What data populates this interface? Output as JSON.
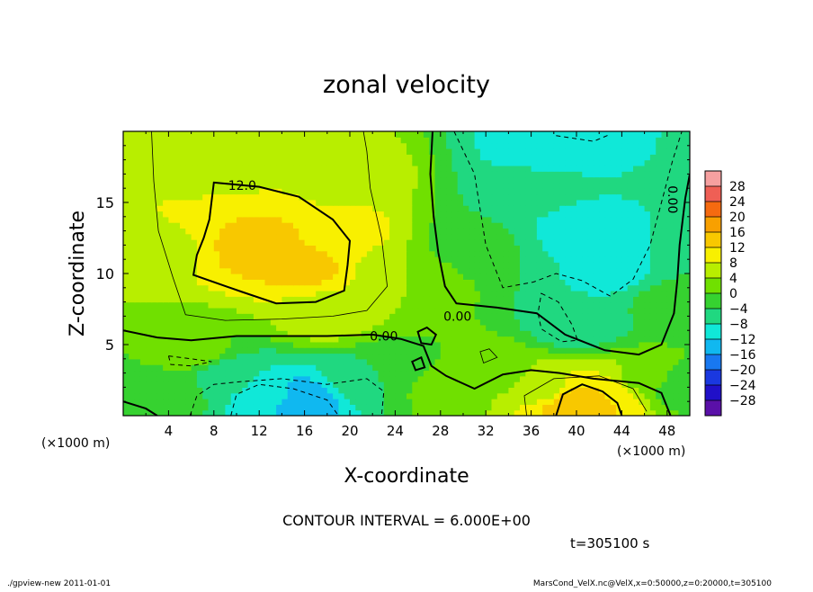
{
  "chart_data": {
    "type": "heatmap",
    "title": "zonal velocity",
    "xlabel": "X-coordinate",
    "ylabel": "Z-coordinate",
    "x_unit": "(×1000 m)",
    "y_unit": "(×1000 m)",
    "xlim": [
      0,
      50
    ],
    "ylim": [
      0,
      20
    ],
    "x_ticks": [
      4,
      8,
      12,
      16,
      20,
      24,
      28,
      32,
      36,
      40,
      44,
      48
    ],
    "y_ticks": [
      5,
      10,
      15
    ],
    "colorbar_labels": [
      28,
      24,
      20,
      16,
      12,
      8,
      4,
      0,
      -4,
      -8,
      -12,
      -16,
      -20,
      -24,
      -28
    ],
    "colorbar_colors": [
      "#f6a0a0",
      "#ef5f55",
      "#f56a10",
      "#f8a000",
      "#f8c800",
      "#f8f000",
      "#b8ee00",
      "#70e000",
      "#36d230",
      "#20d880",
      "#10e8d8",
      "#10b8f0",
      "#1878f0",
      "#1a38e0",
      "#2010c8",
      "#5a10a8"
    ],
    "contour_interval": "CONTOUR INTERVAL = 6.000E+00",
    "contour_labels": [
      "12.0",
      "0.00",
      "0.00",
      "0.00"
    ],
    "time": "t=305100 s",
    "footer_left": "./gpview-new   2011-01-01",
    "footer_right": "MarsCond_VelX.nc@VelX,x=0:50000,z=0:20000,t=305100",
    "regions": [
      {
        "x": 25,
        "z": 10,
        "v": 4
      },
      {
        "x": 8,
        "z": 17,
        "v": 4
      },
      {
        "x": 12,
        "z": 12,
        "v": 14
      },
      {
        "x": 16,
        "z": 10.5,
        "v": 13
      },
      {
        "x": 9,
        "z": 14,
        "v": 12
      },
      {
        "x": 20,
        "z": 13,
        "v": 9
      },
      {
        "x": 3,
        "z": 12,
        "v": 6
      },
      {
        "x": 20,
        "z": 17,
        "v": 6
      },
      {
        "x": 18,
        "z": 7,
        "v": 6
      },
      {
        "x": 6,
        "z": 4.5,
        "v": 2
      },
      {
        "x": 13,
        "z": 1.5,
        "v": -11
      },
      {
        "x": 16,
        "z": 1.2,
        "v": -15
      },
      {
        "x": 9,
        "z": 2.8,
        "v": -6
      },
      {
        "x": 21,
        "z": 2.5,
        "v": -6
      },
      {
        "x": 4,
        "z": 1.5,
        "v": -2
      },
      {
        "x": 24,
        "z": 3,
        "v": -2
      },
      {
        "x": 31,
        "z": 12,
        "v": -3
      },
      {
        "x": 36,
        "z": 16,
        "v": -7
      },
      {
        "x": 37,
        "z": 19,
        "v": -10
      },
      {
        "x": 40,
        "z": 13,
        "v": -9
      },
      {
        "x": 43,
        "z": 10,
        "v": -9
      },
      {
        "x": 44,
        "z": 17,
        "v": -8
      },
      {
        "x": 40,
        "z": 6.5,
        "v": -7
      },
      {
        "x": 48,
        "z": 8,
        "v": -3
      },
      {
        "x": 33,
        "z": 3,
        "v": 2
      },
      {
        "x": 40,
        "z": 0.8,
        "v": 16
      },
      {
        "x": 43,
        "z": 1.3,
        "v": 12
      },
      {
        "x": 37,
        "z": 2,
        "v": 7
      },
      {
        "x": 46,
        "z": 2.5,
        "v": 3
      },
      {
        "x": 49,
        "z": 2,
        "v": -3
      },
      {
        "x": 28,
        "z": 2,
        "v": 2
      }
    ]
  }
}
